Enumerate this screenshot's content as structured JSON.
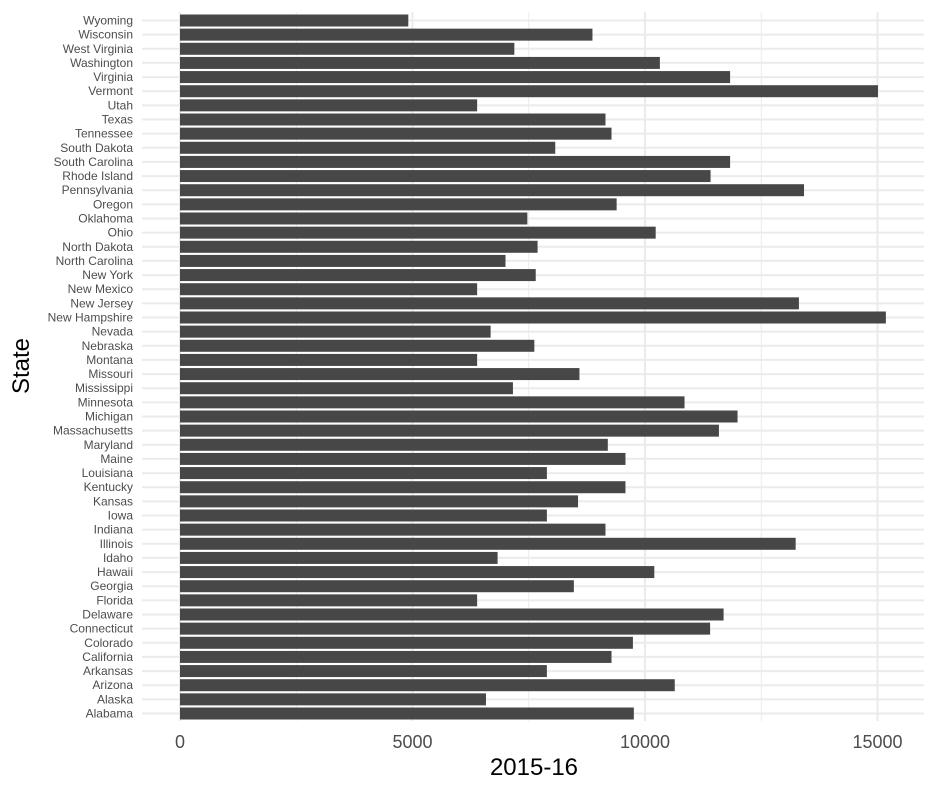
{
  "chart_data": {
    "type": "bar",
    "orientation": "horizontal",
    "title": "",
    "xlabel": "2015-16",
    "ylabel": "State",
    "xlim": [
      0,
      16000
    ],
    "x_ticks": [
      0,
      5000,
      10000,
      15000
    ],
    "x_tick_labels": [
      "0",
      "5000",
      "10000",
      "15000"
    ],
    "grid": true,
    "legend": "none",
    "bar_color": "#474747",
    "grid_color": "#ebebeb",
    "categories": [
      "Alabama",
      "Alaska",
      "Arizona",
      "Arkansas",
      "California",
      "Colorado",
      "Connecticut",
      "Delaware",
      "Florida",
      "Georgia",
      "Hawaii",
      "Idaho",
      "Illinois",
      "Indiana",
      "Iowa",
      "Kansas",
      "Kentucky",
      "Louisiana",
      "Maine",
      "Maryland",
      "Massachusetts",
      "Michigan",
      "Minnesota",
      "Mississippi",
      "Missouri",
      "Montana",
      "Nebraska",
      "Nevada",
      "New Hampshire",
      "New Jersey",
      "New Mexico",
      "New York",
      "North Carolina",
      "North Dakota",
      "Ohio",
      "Oklahoma",
      "Oregon",
      "Pennsylvania",
      "Rhode Island",
      "South Carolina",
      "South Dakota",
      "Tennessee",
      "Texas",
      "Utah",
      "Vermont",
      "Virginia",
      "Washington",
      "West Virginia",
      "Wisconsin",
      "Wyoming"
    ],
    "values": [
      9760,
      6580,
      10640,
      7890,
      9280,
      9740,
      11400,
      11690,
      6390,
      8470,
      10200,
      6830,
      13240,
      9150,
      7890,
      8560,
      9580,
      7890,
      9580,
      9200,
      11590,
      11990,
      10850,
      7160,
      8590,
      6390,
      7620,
      6680,
      15180,
      13310,
      6390,
      7650,
      7000,
      7690,
      10230,
      7470,
      9390,
      13420,
      11410,
      11830,
      8070,
      9280,
      9150,
      6390,
      15010,
      11830,
      10320,
      7190,
      8870,
      4910
    ]
  }
}
